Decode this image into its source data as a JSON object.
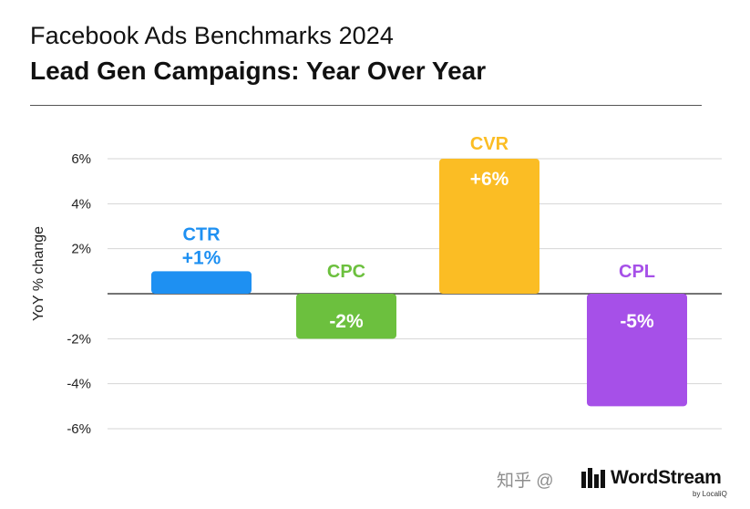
{
  "header": {
    "subtitle": "Facebook Ads Benchmarks 2024",
    "title": "Lead Gen Campaigns: Year Over Year"
  },
  "chart_data": {
    "type": "bar",
    "title": "Lead Gen Campaigns: Year Over Year",
    "ylabel": "YoY % change",
    "xlabel": "",
    "ylim": [
      -6,
      6
    ],
    "yticks": [
      6,
      4,
      2,
      0,
      -2,
      -4,
      -6
    ],
    "ytick_labels": [
      "6%",
      "4%",
      "2%",
      "",
      "-2%",
      "-4%",
      "-6%"
    ],
    "categories": [
      "CTR",
      "CPC",
      "CVR",
      "CPL"
    ],
    "values": [
      1,
      -2,
      6,
      -5
    ],
    "data_labels": [
      "+1%",
      "-2%",
      "+6%",
      "-5%"
    ],
    "colors": [
      "#1E90F2",
      "#6CC03E",
      "#FBBD24",
      "#A650E8"
    ],
    "grid": true
  },
  "watermark": {
    "text": "知乎 @",
    "brand_name": "WordStream",
    "brand_by": "by LocaliQ"
  }
}
